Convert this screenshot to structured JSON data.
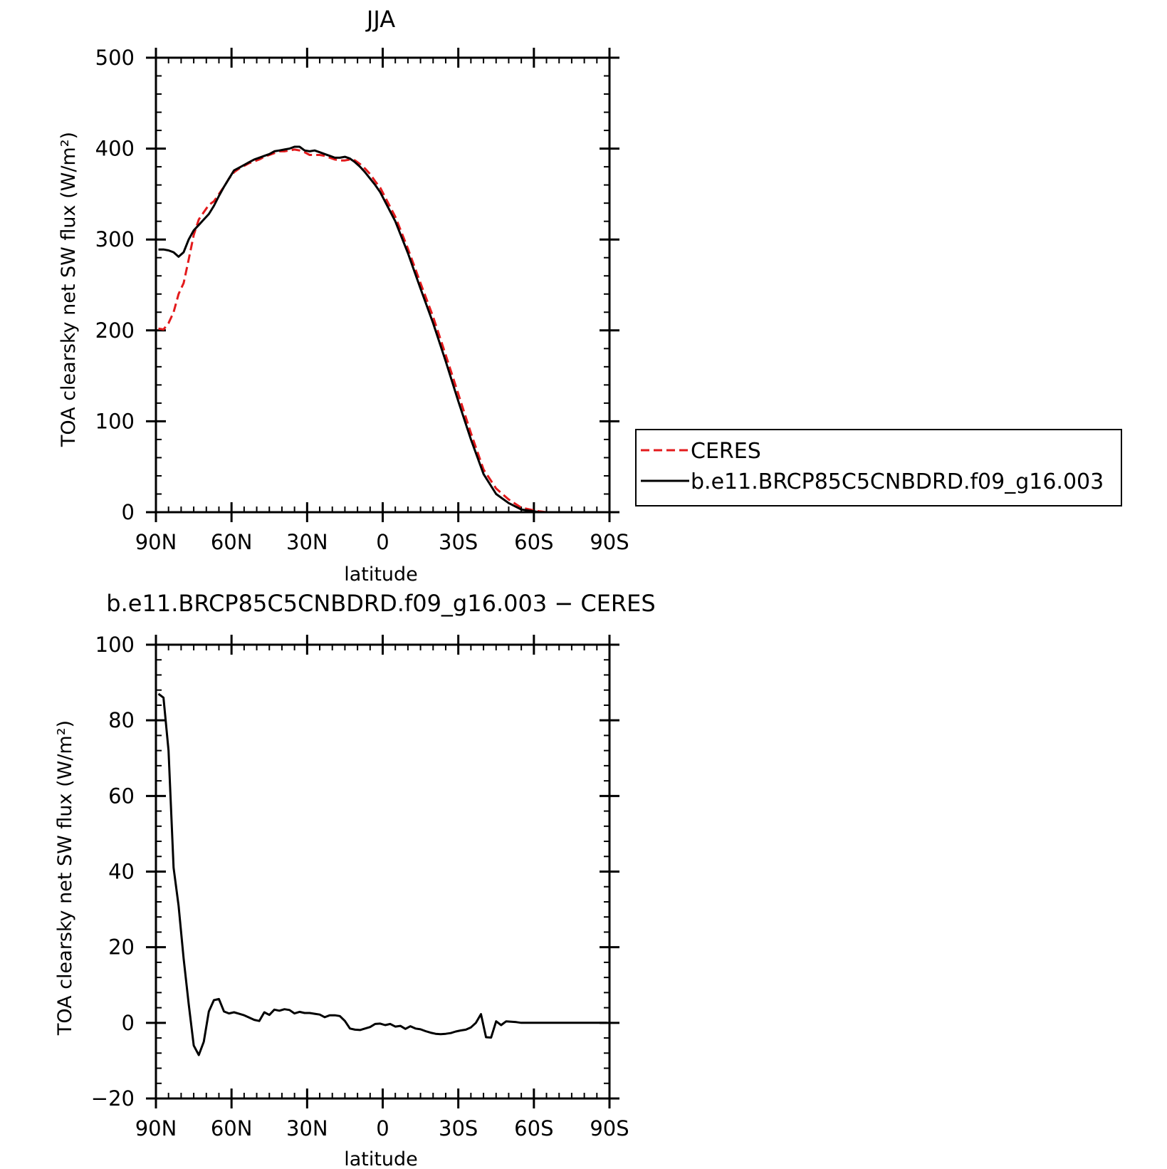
{
  "chart_data": [
    {
      "type": "line",
      "title": "JJA",
      "xlabel": "latitude",
      "ylabel": "TOA clearsky net SW flux (W/m²)",
      "xlim": [
        90,
        -90
      ],
      "ylim": [
        0,
        500
      ],
      "xticks": [
        {
          "value": 90,
          "label": "90N"
        },
        {
          "value": 60,
          "label": "60N"
        },
        {
          "value": 30,
          "label": "30N"
        },
        {
          "value": 0,
          "label": "0"
        },
        {
          "value": -30,
          "label": "30S"
        },
        {
          "value": -60,
          "label": "60S"
        },
        {
          "value": -90,
          "label": "90S"
        }
      ],
      "yticks": [
        {
          "value": 0,
          "label": "0"
        },
        {
          "value": 100,
          "label": "100"
        },
        {
          "value": 200,
          "label": "200"
        },
        {
          "value": 300,
          "label": "300"
        },
        {
          "value": 400,
          "label": "400"
        },
        {
          "value": 500,
          "label": "500"
        }
      ],
      "legend_position": "right",
      "series": [
        {
          "name": "CERES",
          "color": "#e31a1c",
          "dash": "dashed",
          "x": [
            89,
            87,
            85,
            83,
            81,
            79,
            77,
            75,
            73,
            71,
            69,
            67,
            65,
            63,
            61,
            59,
            57,
            55,
            53,
            51,
            49,
            47,
            45,
            43,
            41,
            39,
            37,
            35,
            33,
            31,
            29,
            27,
            25,
            23,
            21,
            19,
            17,
            15,
            13,
            11,
            9,
            7,
            5,
            3,
            1,
            -5,
            -10,
            -15,
            -20,
            -25,
            -30,
            -35,
            -40,
            -45,
            -50,
            -55,
            -60,
            -62,
            -65,
            -68,
            -70,
            -75,
            -80,
            -85,
            -89
          ],
          "y": [
            202,
            201,
            208,
            220,
            240,
            252,
            278,
            305,
            322,
            330,
            338,
            342,
            350,
            358,
            367,
            374,
            378,
            381,
            384,
            386,
            388,
            391,
            393,
            395,
            397,
            397,
            398,
            399,
            398,
            396,
            393,
            393,
            393,
            392,
            390,
            388,
            387,
            387,
            388,
            387,
            383,
            378,
            372,
            364,
            357,
            325,
            290,
            252,
            215,
            173,
            130,
            87,
            47,
            26,
            14,
            5,
            2,
            1,
            0,
            0,
            0,
            0,
            0,
            0,
            0
          ],
          "comment_y_are_values": true
        },
        {
          "name": "b.e11.BRCP85C5CNBDRD.f09_g16.003",
          "color": "#000000",
          "dash": "solid",
          "x": [
            89,
            87,
            85,
            83,
            81,
            79,
            77,
            75,
            73,
            71,
            69,
            67,
            65,
            63,
            61,
            59,
            57,
            55,
            53,
            51,
            49,
            47,
            45,
            43,
            41,
            39,
            37,
            35,
            33,
            31,
            29,
            27,
            25,
            23,
            21,
            19,
            17,
            15,
            13,
            11,
            9,
            7,
            5,
            3,
            1,
            -5,
            -10,
            -15,
            -20,
            -25,
            -30,
            -35,
            -40,
            -45,
            -50,
            -55,
            -60,
            -62,
            -65,
            -68,
            -70,
            -75,
            -80,
            -85,
            -89
          ],
          "y": [
            289,
            289,
            288,
            286,
            281,
            286,
            300,
            310,
            316,
            322,
            328,
            337,
            348,
            358,
            367,
            376,
            379,
            382,
            385,
            388,
            390,
            392,
            394,
            397,
            398,
            399,
            400,
            402,
            402,
            398,
            397,
            398,
            396,
            394,
            392,
            390,
            390,
            391,
            389,
            385,
            380,
            374,
            367,
            360,
            352,
            320,
            285,
            246,
            208,
            166,
            122,
            80,
            42,
            20,
            10,
            3,
            1,
            0,
            0,
            0,
            0,
            0,
            0,
            0,
            0
          ]
        }
      ]
    },
    {
      "type": "line",
      "title": "b.e11.BRCP85C5CNBDRD.f09_g16.003 − CERES",
      "xlabel": "latitude",
      "ylabel": "TOA clearsky net SW flux (W/m²)",
      "xlim": [
        90,
        -90
      ],
      "ylim": [
        -20,
        100
      ],
      "xticks": [
        {
          "value": 90,
          "label": "90N"
        },
        {
          "value": 60,
          "label": "60N"
        },
        {
          "value": 30,
          "label": "30N"
        },
        {
          "value": 0,
          "label": "0"
        },
        {
          "value": -30,
          "label": "30S"
        },
        {
          "value": -60,
          "label": "60S"
        },
        {
          "value": -90,
          "label": "90S"
        }
      ],
      "yticks": [
        {
          "value": -20,
          "label": "−20"
        },
        {
          "value": 0,
          "label": "0"
        },
        {
          "value": 20,
          "label": "20"
        },
        {
          "value": 40,
          "label": "40"
        },
        {
          "value": 60,
          "label": "60"
        },
        {
          "value": 80,
          "label": "80"
        },
        {
          "value": 100,
          "label": "100"
        }
      ],
      "series": [
        {
          "color": "#000000",
          "dash": "solid",
          "x": [
            89,
            87,
            85,
            83,
            81,
            79,
            77,
            75,
            73,
            71,
            69,
            67,
            65,
            63,
            61,
            59,
            57,
            55,
            53,
            51,
            49,
            47,
            45,
            43,
            41,
            39,
            37,
            35,
            33,
            31,
            29,
            27,
            25,
            23,
            21,
            19,
            17,
            15,
            13,
            11,
            9,
            7,
            5,
            3,
            1,
            -1,
            -3,
            -5,
            -7,
            -9,
            -11,
            -13,
            -15,
            -17,
            -19,
            -21,
            -23,
            -25,
            -27,
            -29,
            -31,
            -33,
            -35,
            -37,
            -39,
            -41,
            -43,
            -45,
            -47,
            -49,
            -51,
            -53,
            -55,
            -57,
            -59,
            -61,
            -63,
            -65,
            -67,
            -69,
            -71,
            -73,
            -75,
            -77,
            -79,
            -81,
            -83,
            -85,
            -87,
            -89
          ],
          "y": [
            87,
            86,
            72,
            41,
            31,
            17,
            5,
            -6,
            -8.5,
            -5,
            3,
            6,
            6.3,
            3,
            2.5,
            2.8,
            2.4,
            2,
            1.4,
            0.8,
            0.5,
            2.8,
            2.1,
            3.5,
            3.2,
            3.6,
            3.4,
            2.5,
            2.9,
            2.6,
            2.6,
            2.4,
            2.2,
            1.5,
            2,
            2,
            1.8,
            0.5,
            -1.5,
            -1.8,
            -1.9,
            -1.5,
            -1.1,
            -0.3,
            -0.2,
            -0.6,
            -0.3,
            -1,
            -0.8,
            -1.6,
            -0.9,
            -1.5,
            -1.7,
            -2.2,
            -2.6,
            -2.9,
            -3,
            -2.9,
            -2.7,
            -2.3,
            -2,
            -1.8,
            -1.2,
            0,
            2.3,
            -3.8,
            -3.9,
            0.4,
            -0.6,
            0.4,
            0.3,
            0.2,
            0,
            0,
            0,
            0,
            0,
            0,
            0,
            0,
            0,
            0,
            0,
            0,
            0,
            0,
            0,
            0,
            0,
            0
          ],
          "comment_y_are_values": true
        }
      ]
    }
  ],
  "legend": {
    "items": [
      {
        "label": "CERES"
      },
      {
        "label": "b.e11.BRCP85C5CNBDRD.f09_g16.003"
      }
    ]
  }
}
